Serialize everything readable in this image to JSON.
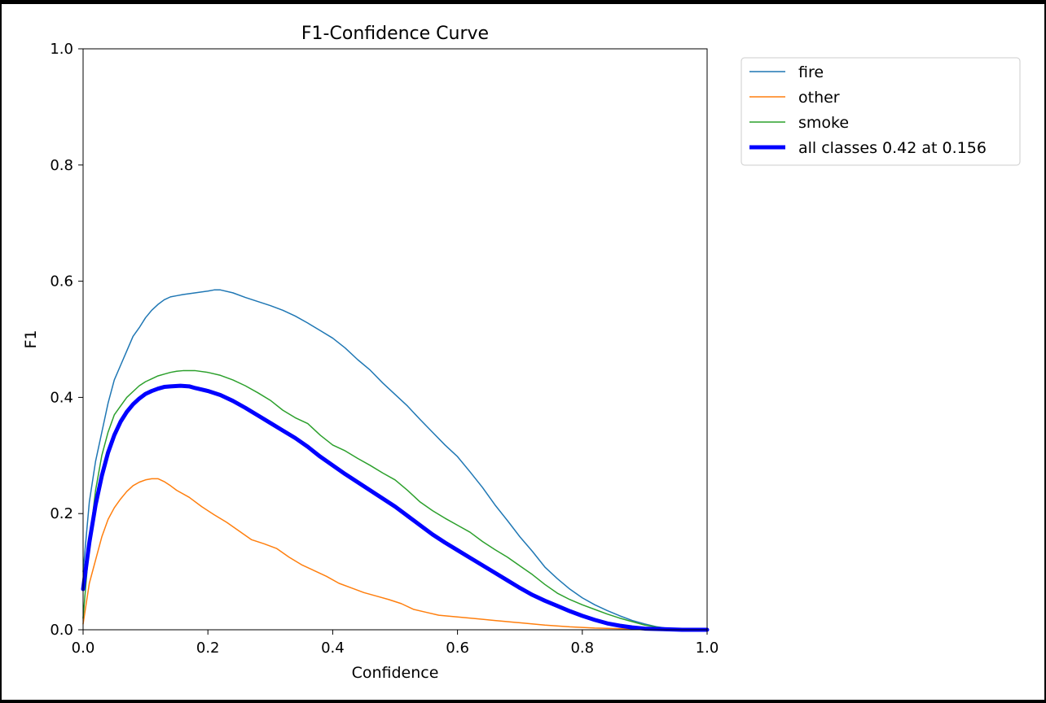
{
  "chart_data": {
    "type": "line",
    "title": "F1-Confidence Curve",
    "xlabel": "Confidence",
    "ylabel": "F1",
    "xlim": [
      0,
      1
    ],
    "ylim": [
      0,
      1
    ],
    "grid": false,
    "legend_position": "outside-top-right",
    "xticks": [
      "0.0",
      "0.2",
      "0.4",
      "0.6",
      "0.8",
      "1.0"
    ],
    "yticks": [
      "0.0",
      "0.2",
      "0.4",
      "0.6",
      "0.8",
      "1.0"
    ],
    "series": [
      {
        "name": "fire",
        "color": "#1f77b4",
        "points": [
          [
            0,
            0.1
          ],
          [
            0.01,
            0.22
          ],
          [
            0.02,
            0.29
          ],
          [
            0.03,
            0.34
          ],
          [
            0.04,
            0.39
          ],
          [
            0.05,
            0.43
          ],
          [
            0.06,
            0.455
          ],
          [
            0.07,
            0.48
          ],
          [
            0.08,
            0.505
          ],
          [
            0.09,
            0.52
          ],
          [
            0.1,
            0.537
          ],
          [
            0.11,
            0.55
          ],
          [
            0.12,
            0.56
          ],
          [
            0.13,
            0.568
          ],
          [
            0.14,
            0.573
          ],
          [
            0.15,
            0.575
          ],
          [
            0.16,
            0.577
          ],
          [
            0.18,
            0.58
          ],
          [
            0.2,
            0.583
          ],
          [
            0.21,
            0.585
          ],
          [
            0.22,
            0.585
          ],
          [
            0.24,
            0.58
          ],
          [
            0.26,
            0.572
          ],
          [
            0.28,
            0.565
          ],
          [
            0.3,
            0.558
          ],
          [
            0.32,
            0.55
          ],
          [
            0.34,
            0.54
          ],
          [
            0.36,
            0.528
          ],
          [
            0.38,
            0.515
          ],
          [
            0.4,
            0.502
          ],
          [
            0.42,
            0.485
          ],
          [
            0.44,
            0.465
          ],
          [
            0.46,
            0.447
          ],
          [
            0.48,
            0.425
          ],
          [
            0.5,
            0.405
          ],
          [
            0.52,
            0.385
          ],
          [
            0.54,
            0.362
          ],
          [
            0.56,
            0.34
          ],
          [
            0.58,
            0.318
          ],
          [
            0.6,
            0.298
          ],
          [
            0.62,
            0.272
          ],
          [
            0.64,
            0.245
          ],
          [
            0.66,
            0.215
          ],
          [
            0.68,
            0.188
          ],
          [
            0.7,
            0.16
          ],
          [
            0.72,
            0.135
          ],
          [
            0.74,
            0.108
          ],
          [
            0.76,
            0.088
          ],
          [
            0.78,
            0.07
          ],
          [
            0.8,
            0.055
          ],
          [
            0.82,
            0.043
          ],
          [
            0.84,
            0.033
          ],
          [
            0.86,
            0.024
          ],
          [
            0.88,
            0.016
          ],
          [
            0.9,
            0.01
          ],
          [
            0.92,
            0.005
          ],
          [
            0.94,
            0.002
          ],
          [
            0.96,
            0.001
          ],
          [
            1.0,
            0
          ]
        ]
      },
      {
        "name": "other",
        "color": "#ff7f0e",
        "points": [
          [
            0,
            0.01
          ],
          [
            0.01,
            0.08
          ],
          [
            0.02,
            0.12
          ],
          [
            0.03,
            0.16
          ],
          [
            0.04,
            0.19
          ],
          [
            0.05,
            0.21
          ],
          [
            0.06,
            0.225
          ],
          [
            0.07,
            0.238
          ],
          [
            0.08,
            0.248
          ],
          [
            0.09,
            0.254
          ],
          [
            0.1,
            0.258
          ],
          [
            0.11,
            0.26
          ],
          [
            0.12,
            0.26
          ],
          [
            0.13,
            0.255
          ],
          [
            0.14,
            0.248
          ],
          [
            0.15,
            0.24
          ],
          [
            0.17,
            0.228
          ],
          [
            0.19,
            0.212
          ],
          [
            0.21,
            0.198
          ],
          [
            0.23,
            0.185
          ],
          [
            0.25,
            0.17
          ],
          [
            0.27,
            0.155
          ],
          [
            0.29,
            0.148
          ],
          [
            0.31,
            0.14
          ],
          [
            0.33,
            0.125
          ],
          [
            0.35,
            0.112
          ],
          [
            0.37,
            0.102
          ],
          [
            0.39,
            0.092
          ],
          [
            0.41,
            0.08
          ],
          [
            0.43,
            0.072
          ],
          [
            0.45,
            0.064
          ],
          [
            0.47,
            0.058
          ],
          [
            0.49,
            0.052
          ],
          [
            0.51,
            0.045
          ],
          [
            0.53,
            0.035
          ],
          [
            0.55,
            0.03
          ],
          [
            0.57,
            0.025
          ],
          [
            0.6,
            0.022
          ],
          [
            0.63,
            0.019
          ],
          [
            0.66,
            0.016
          ],
          [
            0.7,
            0.012
          ],
          [
            0.74,
            0.008
          ],
          [
            0.78,
            0.005
          ],
          [
            0.82,
            0.003
          ],
          [
            0.86,
            0.002
          ],
          [
            0.9,
            0.001
          ]
        ]
      },
      {
        "name": "smoke",
        "color": "#2ca02c",
        "points": [
          [
            0,
            0.02
          ],
          [
            0.01,
            0.15
          ],
          [
            0.02,
            0.24
          ],
          [
            0.03,
            0.3
          ],
          [
            0.04,
            0.34
          ],
          [
            0.05,
            0.37
          ],
          [
            0.06,
            0.385
          ],
          [
            0.07,
            0.4
          ],
          [
            0.08,
            0.41
          ],
          [
            0.09,
            0.42
          ],
          [
            0.1,
            0.427
          ],
          [
            0.11,
            0.432
          ],
          [
            0.12,
            0.437
          ],
          [
            0.13,
            0.44
          ],
          [
            0.14,
            0.443
          ],
          [
            0.15,
            0.445
          ],
          [
            0.16,
            0.446
          ],
          [
            0.18,
            0.446
          ],
          [
            0.2,
            0.443
          ],
          [
            0.22,
            0.438
          ],
          [
            0.24,
            0.43
          ],
          [
            0.26,
            0.42
          ],
          [
            0.28,
            0.408
          ],
          [
            0.3,
            0.395
          ],
          [
            0.32,
            0.378
          ],
          [
            0.34,
            0.365
          ],
          [
            0.36,
            0.355
          ],
          [
            0.38,
            0.335
          ],
          [
            0.4,
            0.318
          ],
          [
            0.42,
            0.308
          ],
          [
            0.44,
            0.295
          ],
          [
            0.46,
            0.283
          ],
          [
            0.48,
            0.27
          ],
          [
            0.5,
            0.258
          ],
          [
            0.52,
            0.24
          ],
          [
            0.54,
            0.22
          ],
          [
            0.56,
            0.205
          ],
          [
            0.58,
            0.192
          ],
          [
            0.6,
            0.18
          ],
          [
            0.62,
            0.168
          ],
          [
            0.64,
            0.152
          ],
          [
            0.66,
            0.138
          ],
          [
            0.68,
            0.125
          ],
          [
            0.7,
            0.11
          ],
          [
            0.72,
            0.095
          ],
          [
            0.74,
            0.078
          ],
          [
            0.76,
            0.063
          ],
          [
            0.78,
            0.052
          ],
          [
            0.8,
            0.043
          ],
          [
            0.82,
            0.035
          ],
          [
            0.84,
            0.027
          ],
          [
            0.86,
            0.02
          ],
          [
            0.88,
            0.014
          ],
          [
            0.9,
            0.008
          ],
          [
            0.93,
            0.003
          ],
          [
            0.96,
            0.001
          ],
          [
            1.0,
            0
          ]
        ]
      },
      {
        "name": "all classes 0.42 at 0.156",
        "color": "#0000ff",
        "points": [
          [
            0,
            0.07
          ],
          [
            0.01,
            0.15
          ],
          [
            0.02,
            0.215
          ],
          [
            0.03,
            0.265
          ],
          [
            0.04,
            0.305
          ],
          [
            0.05,
            0.335
          ],
          [
            0.06,
            0.358
          ],
          [
            0.07,
            0.375
          ],
          [
            0.08,
            0.388
          ],
          [
            0.09,
            0.398
          ],
          [
            0.1,
            0.406
          ],
          [
            0.11,
            0.411
          ],
          [
            0.12,
            0.415
          ],
          [
            0.13,
            0.418
          ],
          [
            0.14,
            0.419
          ],
          [
            0.156,
            0.42
          ],
          [
            0.17,
            0.419
          ],
          [
            0.18,
            0.416
          ],
          [
            0.2,
            0.411
          ],
          [
            0.22,
            0.404
          ],
          [
            0.24,
            0.394
          ],
          [
            0.26,
            0.382
          ],
          [
            0.28,
            0.369
          ],
          [
            0.3,
            0.356
          ],
          [
            0.32,
            0.343
          ],
          [
            0.34,
            0.33
          ],
          [
            0.36,
            0.315
          ],
          [
            0.38,
            0.298
          ],
          [
            0.4,
            0.283
          ],
          [
            0.42,
            0.268
          ],
          [
            0.44,
            0.254
          ],
          [
            0.46,
            0.24
          ],
          [
            0.48,
            0.226
          ],
          [
            0.5,
            0.212
          ],
          [
            0.52,
            0.196
          ],
          [
            0.54,
            0.18
          ],
          [
            0.56,
            0.164
          ],
          [
            0.58,
            0.15
          ],
          [
            0.6,
            0.137
          ],
          [
            0.62,
            0.124
          ],
          [
            0.64,
            0.111
          ],
          [
            0.66,
            0.098
          ],
          [
            0.68,
            0.085
          ],
          [
            0.7,
            0.072
          ],
          [
            0.72,
            0.06
          ],
          [
            0.74,
            0.05
          ],
          [
            0.76,
            0.041
          ],
          [
            0.78,
            0.032
          ],
          [
            0.8,
            0.024
          ],
          [
            0.82,
            0.017
          ],
          [
            0.84,
            0.011
          ],
          [
            0.86,
            0.007
          ],
          [
            0.88,
            0.004
          ],
          [
            0.9,
            0.002
          ],
          [
            0.93,
            0.001
          ],
          [
            0.96,
            0.0
          ],
          [
            1.0,
            0
          ]
        ]
      }
    ]
  }
}
